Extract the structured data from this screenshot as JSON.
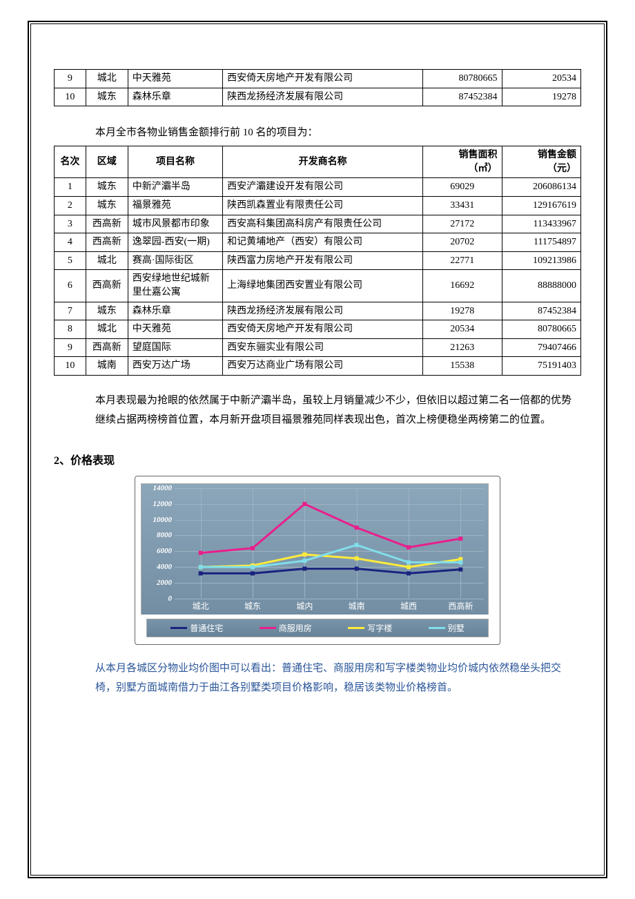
{
  "table1": {
    "rows": [
      {
        "rank": "9",
        "region": "城北",
        "project": "中天雅苑",
        "developer": "西安倚天房地产开发有限公司",
        "v1": "80780665",
        "v2": "20534"
      },
      {
        "rank": "10",
        "region": "城东",
        "project": "森林乐章",
        "developer": "陕西龙扬经济发展有限公司",
        "v1": "87452384",
        "v2": "19278"
      }
    ]
  },
  "caption1": "本月全市各物业销售金额排行前 10 名的项目为：",
  "table2": {
    "headers": {
      "rank": "名次",
      "region": "区域",
      "project": "项目名称",
      "developer": "开发商名称",
      "area": "销售面积",
      "area_unit": "（㎡）",
      "amount": "销售金额",
      "amount_unit": "（元）"
    },
    "rows": [
      {
        "rank": "1",
        "region": "城东",
        "project": "中新浐灞半岛",
        "developer": "西安浐灞建设开发有限公司",
        "area": "69029",
        "amount": "206086134"
      },
      {
        "rank": "2",
        "region": "城东",
        "project": "福景雅苑",
        "developer": "陕西凯森置业有限责任公司",
        "area": "33431",
        "amount": "129167619"
      },
      {
        "rank": "3",
        "region": "西高新",
        "project": "城市风景都市印象",
        "developer": "西安高科集团高科房产有限责任公司",
        "area": "27172",
        "amount": "113433967"
      },
      {
        "rank": "4",
        "region": "西高新",
        "project": "逸翠园-西安(一期)",
        "developer": "和记黄埔地产（西安）有限公司",
        "area": "20702",
        "amount": "111754897"
      },
      {
        "rank": "5",
        "region": "城北",
        "project": "赛高·国际街区",
        "developer": "陕西富力房地产开发有限公司",
        "area": "22771",
        "amount": "109213986"
      },
      {
        "rank": "6",
        "region": "西高新",
        "project": "西安绿地世纪城新里仕嘉公寓",
        "developer": "上海绿地集团西安置业有限公司",
        "area": "16692",
        "amount": "88888000"
      },
      {
        "rank": "7",
        "region": "城东",
        "project": "森林乐章",
        "developer": "陕西龙扬经济发展有限公司",
        "area": "19278",
        "amount": "87452384"
      },
      {
        "rank": "8",
        "region": "城北",
        "project": "中天雅苑",
        "developer": "西安倚天房地产开发有限公司",
        "area": "20534",
        "amount": "80780665"
      },
      {
        "rank": "9",
        "region": "西高新",
        "project": "望庭国际",
        "developer": "西安东骊实业有限公司",
        "area": "21263",
        "amount": "79407466"
      },
      {
        "rank": "10",
        "region": "城南",
        "project": "西安万达广场",
        "developer": "西安万达商业广场有限公司",
        "area": "15538",
        "amount": "75191403"
      }
    ]
  },
  "paragraph1": "本月表现最为抢眼的依然属于中新浐灞半岛，虽较上月销量减少不少，但依旧以超过第二名一倍都的优势继续占据两榜榜首位置，本月新开盘项目福景雅苑同样表现出色，首次上榜便稳坐两榜第二的位置。",
  "heading1": "2、价格表现",
  "analysis1": "从本月各城区分物业均价图中可以看出：普通住宅、商服用房和写字楼类物业均价城内依然稳坐头把交椅，别墅方面城南借力于曲江各别墅类项目价格影响，稳居该类物业价格榜首。",
  "chart": {
    "type": "line",
    "categories": [
      "城北",
      "城东",
      "城内",
      "城南",
      "城西",
      "西高新"
    ],
    "ylim": [
      0,
      14000
    ],
    "ytick_step": 2000,
    "yticks": [
      0,
      2000,
      4000,
      6000,
      8000,
      10000,
      12000,
      14000
    ],
    "background_color_top": "#8ca6ba",
    "background_color_bottom": "#738ea3",
    "grid_color": "#9fb3c3",
    "tick_label_color": "#ffffff",
    "tick_fontsize": 11,
    "series": [
      {
        "name": "普通住宅",
        "color": "#1a237e",
        "values": [
          3200,
          3200,
          3800,
          3800,
          3200,
          3700
        ]
      },
      {
        "name": "商服用房",
        "color": "#e91e8c",
        "values": [
          5800,
          6400,
          12000,
          9000,
          6500,
          7600
        ]
      },
      {
        "name": "写字楼",
        "color": "#ffeb3b",
        "values": [
          4000,
          4200,
          5600,
          5100,
          4000,
          5000
        ]
      },
      {
        "name": "别墅",
        "color": "#80deea",
        "values": [
          4000,
          4000,
          4800,
          6800,
          4600,
          4600
        ]
      }
    ],
    "legend": {
      "labels": [
        "普通住宅",
        "商服用房",
        "写字楼",
        "别墅"
      ],
      "colors": [
        "#1a237e",
        "#e91e8c",
        "#ffeb3b",
        "#80deea"
      ]
    }
  }
}
